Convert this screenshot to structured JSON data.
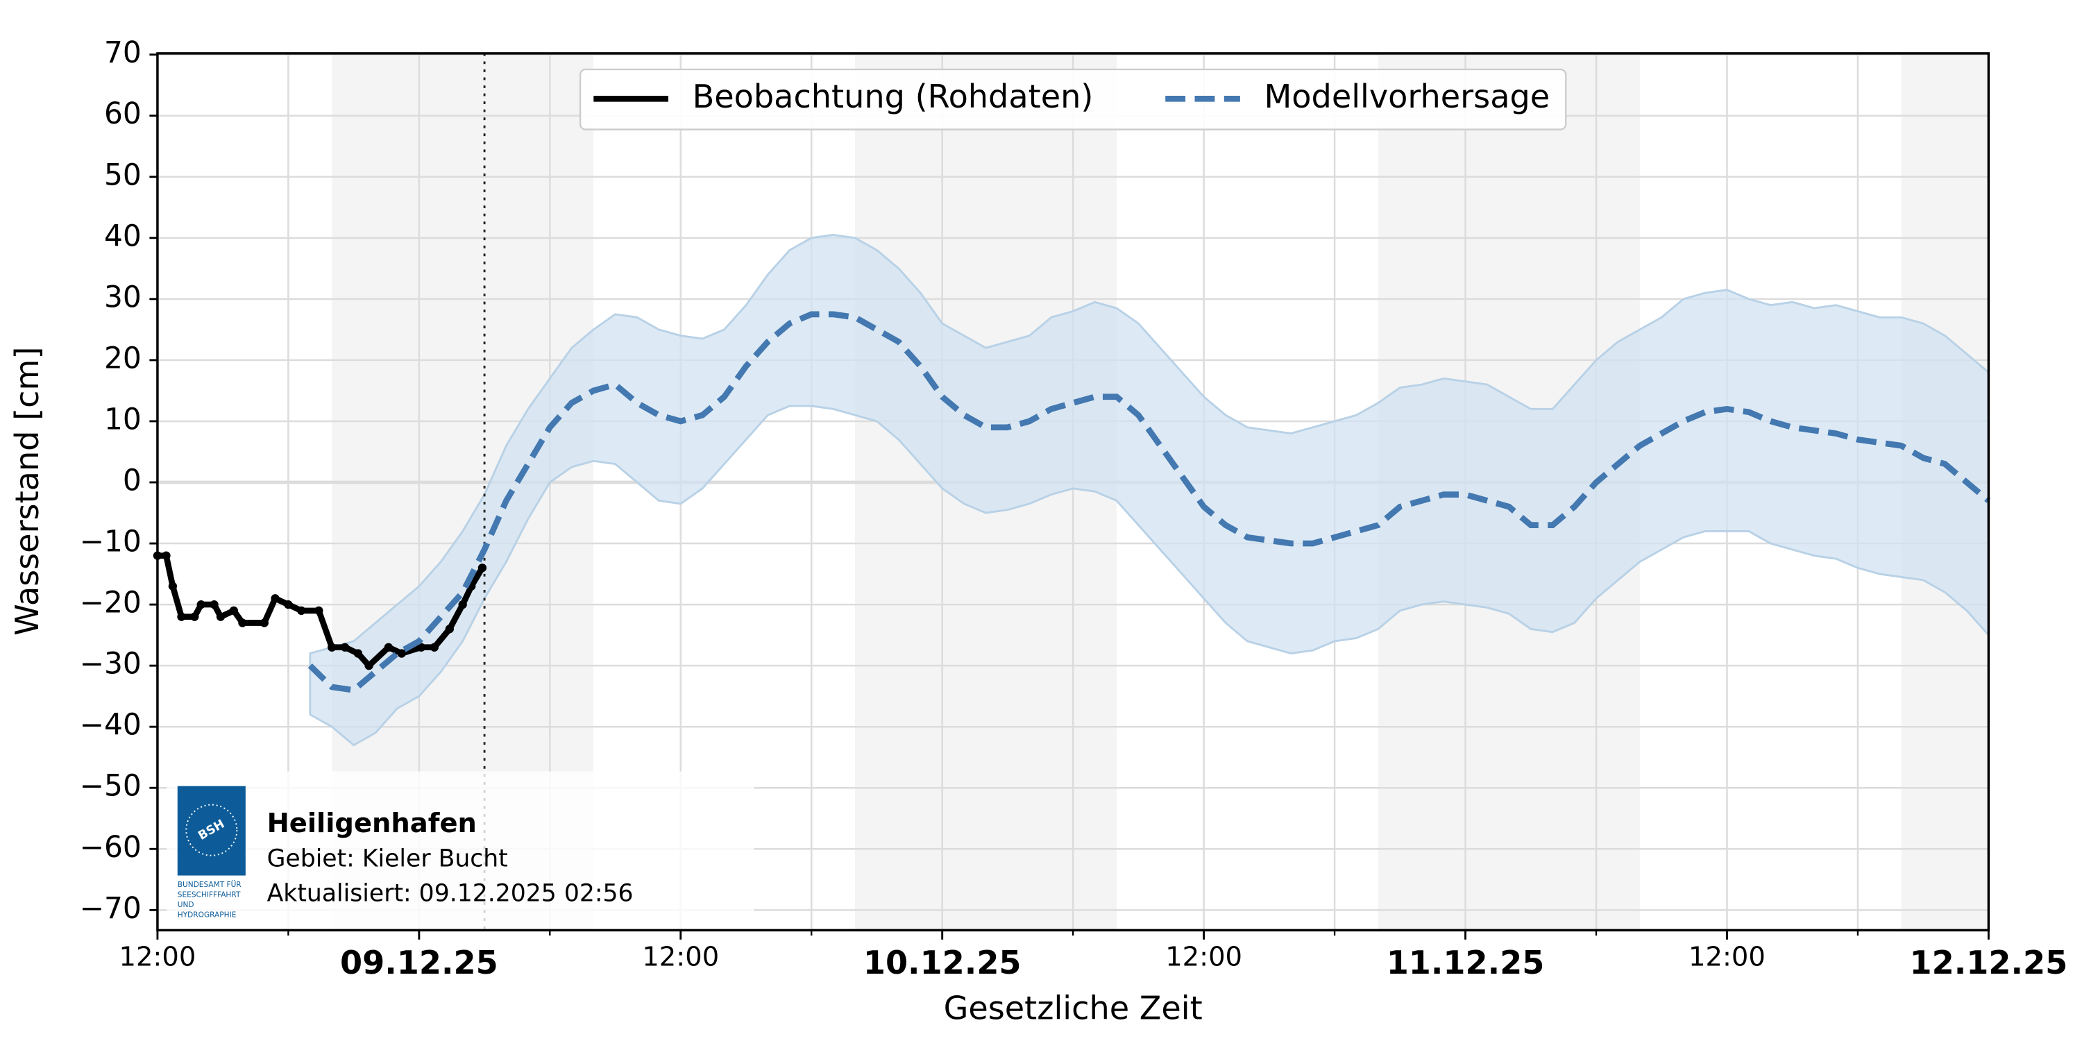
{
  "chart_data": {
    "type": "line",
    "y_label": "Wasserstand [cm]",
    "x_label": "Gesetzliche Zeit",
    "xlim": [
      0,
      84
    ],
    "xticks": [
      {
        "value": 0,
        "label": "12:00"
      },
      {
        "value": 12,
        "label": "09.12.25"
      },
      {
        "value": 24,
        "label": "12:00"
      },
      {
        "value": 36,
        "label": "10.12.25"
      },
      {
        "value": 48,
        "label": "12:00"
      },
      {
        "value": 60,
        "label": "11.12.25"
      },
      {
        "value": 72,
        "label": "12:00"
      },
      {
        "value": 84,
        "label": "12.12.25"
      }
    ],
    "xminor_ticks": [
      6,
      18,
      30,
      42,
      54,
      66,
      78
    ],
    "ylim": [
      -73.3,
      70.2
    ],
    "yticks": [
      {
        "value": -70,
        "label": "−70"
      },
      {
        "value": -60,
        "label": "−60"
      },
      {
        "value": -50,
        "label": "−50"
      },
      {
        "value": -40,
        "label": "−40"
      },
      {
        "value": -30,
        "label": "−30"
      },
      {
        "value": -20,
        "label": "−20"
      },
      {
        "value": -10,
        "label": "−10"
      },
      0,
      10,
      20,
      30,
      40,
      50,
      60,
      70
    ],
    "grid": true,
    "legend": "upper center",
    "shaded_periods": [
      [
        8,
        20
      ],
      [
        32,
        44
      ],
      [
        56,
        68
      ],
      [
        80,
        84
      ]
    ],
    "now_line": 15,
    "series": [
      {
        "name": "Beobachtung (Rohdaten)",
        "color": "#000000",
        "x": [
          0,
          0.4,
          0.7,
          1.1,
          1.7,
          2.0,
          2.6,
          2.9,
          3.5,
          3.9,
          4.9,
          5.4,
          6.0,
          6.6,
          7.4,
          8.0,
          8.6,
          9.2,
          9.7,
          10.6,
          11.2,
          12.1,
          12.7,
          13.4,
          14.0,
          14.4,
          14.9
        ],
        "values": [
          -12,
          -12,
          -17,
          -22,
          -22,
          -20,
          -20,
          -22,
          -21,
          -23,
          -23,
          -19,
          -20,
          -21,
          -21,
          -27,
          -27,
          -28,
          -30,
          -27,
          -28,
          -27,
          -27,
          -24,
          -20,
          -17,
          -14
        ]
      },
      {
        "name": "Modellvorhersage",
        "color": "#4378b0",
        "x": [
          7,
          8,
          9,
          10,
          11,
          12,
          13,
          14,
          15,
          16,
          17,
          18,
          19,
          20,
          21,
          22,
          23,
          24,
          25,
          26,
          27,
          28,
          29,
          30,
          31,
          32,
          33,
          34,
          35,
          36,
          37,
          38,
          39,
          40,
          41,
          42,
          43,
          44,
          45,
          46,
          47,
          48,
          49,
          50,
          51,
          52,
          53,
          54,
          55,
          56,
          57,
          58,
          59,
          60,
          61,
          62,
          63,
          64,
          65,
          66,
          67,
          68,
          69,
          70,
          71,
          72,
          73,
          74,
          75,
          76,
          77,
          78,
          79,
          80,
          81,
          82,
          83,
          84
        ],
        "values": [
          -30,
          -33.5,
          -34,
          -31,
          -28,
          -26,
          -22,
          -18,
          -11,
          -3,
          3,
          9,
          13,
          15,
          16,
          13,
          11,
          10,
          11,
          14,
          19,
          23,
          26,
          27.5,
          27.5,
          27,
          25,
          23,
          19,
          14,
          11,
          9,
          9,
          10,
          12,
          13,
          14,
          14,
          11,
          6,
          1,
          -4,
          -7,
          -9,
          -9.5,
          -10,
          -10,
          -9,
          -8,
          -7,
          -4,
          -3,
          -2,
          -2,
          -3,
          -4,
          -7,
          -7,
          -4,
          0,
          3,
          6,
          8,
          10,
          11.5,
          12,
          11.5,
          10,
          9,
          8.5,
          8,
          7,
          6.5,
          6,
          4,
          3,
          0,
          -3
        ]
      }
    ],
    "band": {
      "color": "#d2e3f1",
      "upper": [
        -28,
        -27,
        -26,
        -23,
        -20,
        -17,
        -13,
        -8,
        -2,
        6,
        12,
        17,
        22,
        25,
        27.5,
        27,
        25,
        24,
        23.5,
        25,
        29,
        34,
        38,
        40,
        40.5,
        40,
        38,
        35,
        31,
        26,
        24,
        22,
        23,
        24,
        27,
        28,
        29.5,
        28.5,
        26,
        22,
        18,
        14,
        11,
        9,
        8.5,
        8,
        9,
        10,
        11,
        13,
        15.5,
        16,
        17,
        16.5,
        16,
        14,
        12,
        12,
        16,
        20,
        23,
        25,
        27,
        30,
        31,
        31.5,
        30,
        29,
        29.5,
        28.5,
        29,
        28,
        27,
        27,
        26,
        24,
        21,
        18
      ],
      "lower": [
        -38,
        -40,
        -43,
        -41,
        -37,
        -35,
        -31,
        -26,
        -19,
        -13,
        -6,
        0,
        2.5,
        3.5,
        3,
        0,
        -3,
        -3.5,
        -1,
        3,
        7,
        11,
        12.5,
        12.5,
        12,
        11,
        10,
        7,
        3,
        -1,
        -3.5,
        -5,
        -4.5,
        -3.5,
        -2,
        -1,
        -1.5,
        -3,
        -7,
        -11,
        -15,
        -19,
        -23,
        -26,
        -27,
        -28,
        -27.5,
        -26,
        -25.5,
        -24,
        -21,
        -20,
        -19.5,
        -20,
        -20.5,
        -21.5,
        -24,
        -24.5,
        -23,
        -19,
        -16,
        -13,
        -11,
        -9,
        -8,
        -8,
        -8,
        -10,
        -11,
        -12,
        -12.5,
        -14,
        -15,
        -15.5,
        -16,
        -18,
        -21,
        -25
      ]
    },
    "info": {
      "station": "Heiligenhafen",
      "area": "Gebiet: Kieler Bucht",
      "updated": "Aktualisiert: 09.12.2025 02:56"
    },
    "logo": {
      "text": "BSH",
      "caption": [
        "BUNDESAMT FÜR",
        "SEESCHIFFFAHRT",
        "UND",
        "HYDROGRAPHIE"
      ]
    }
  }
}
